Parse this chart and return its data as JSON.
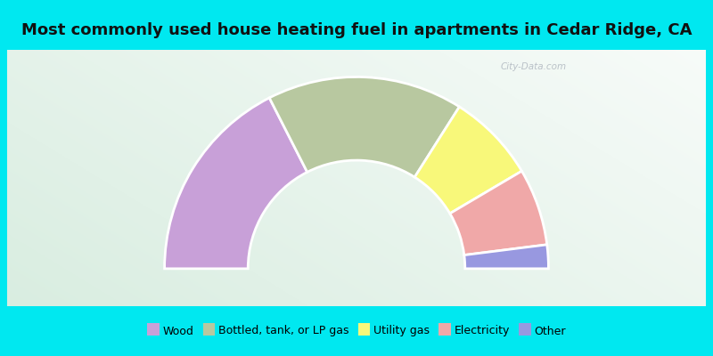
{
  "title": "Most commonly used house heating fuel in apartments in Cedar Ridge, CA",
  "categories": [
    "Wood",
    "Bottled, tank, or LP gas",
    "Utility gas",
    "Electricity",
    "Other"
  ],
  "values": [
    35,
    33,
    15,
    13,
    4
  ],
  "colors": [
    "#c8a0d8",
    "#b8c8a0",
    "#f8f87a",
    "#f0a8a8",
    "#9898e0"
  ],
  "bg_cyan": "#00e8f0",
  "bg_grad_corner": "#b8e8c8",
  "bg_grad_center": "#f0f8f4",
  "title_fontsize": 13,
  "legend_fontsize": 9,
  "watermark": "City-Data.com"
}
